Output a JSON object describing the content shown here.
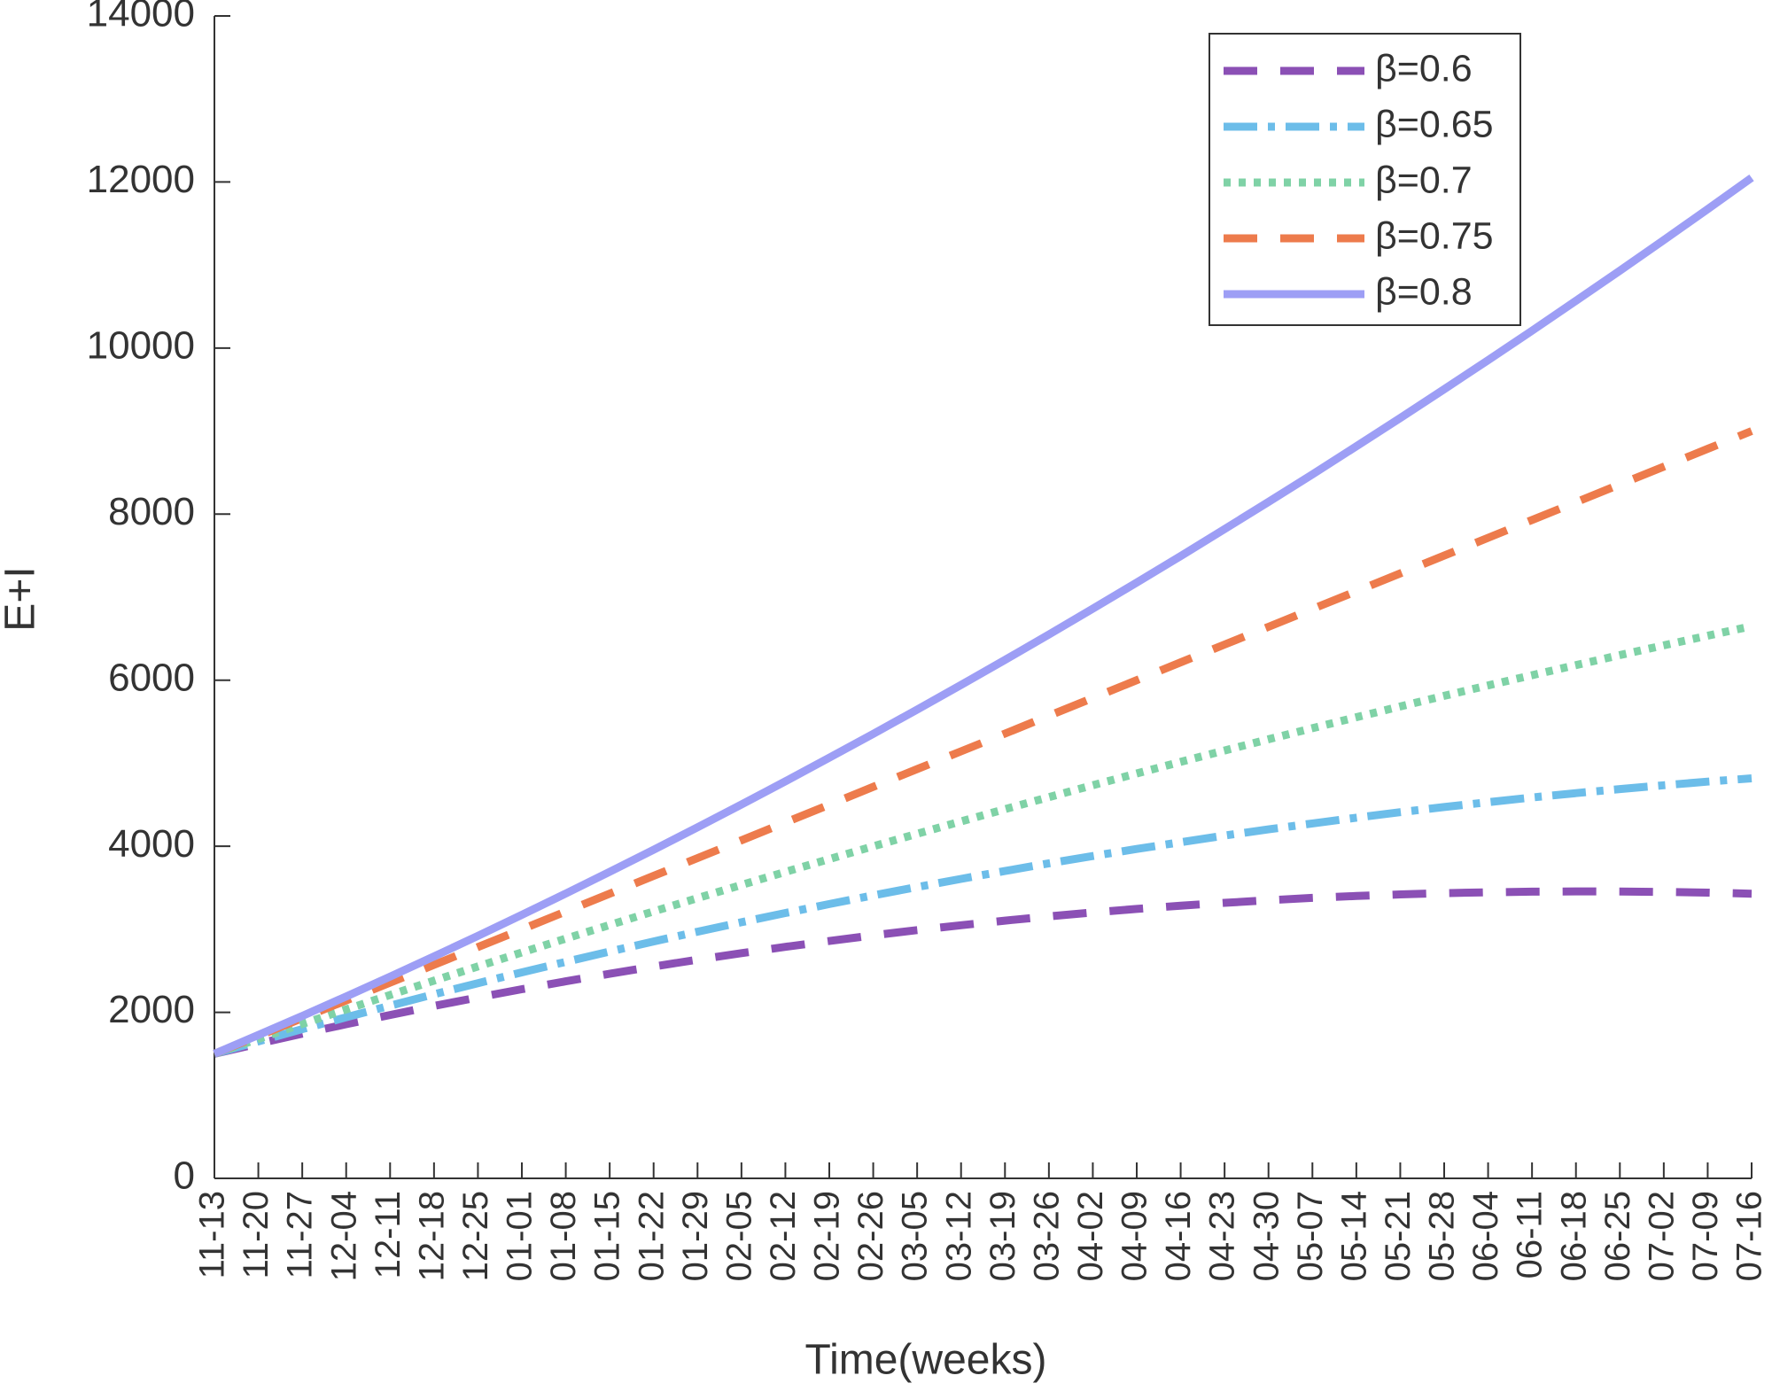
{
  "chart_data": {
    "type": "line",
    "xlabel": "Time(weeks)",
    "ylabel": "E+I",
    "categories": [
      "11-13",
      "11-20",
      "11-27",
      "12-04",
      "12-11",
      "12-18",
      "12-25",
      "01-01",
      "01-08",
      "01-15",
      "01-22",
      "01-29",
      "02-05",
      "02-12",
      "02-19",
      "02-26",
      "03-05",
      "03-12",
      "03-19",
      "03-26",
      "04-02",
      "04-09",
      "04-16",
      "04-23",
      "04-30",
      "05-07",
      "05-14",
      "05-21",
      "05-28",
      "06-04",
      "06-11",
      "06-18",
      "06-25",
      "07-02",
      "07-09",
      "07-16"
    ],
    "ylim": [
      0,
      14000
    ],
    "yticks": [
      0,
      2000,
      4000,
      6000,
      8000,
      10000,
      12000,
      14000
    ],
    "grid": false,
    "legend": "upper right",
    "series": [
      {
        "name": "β=0.6",
        "color": "#8b50b5",
        "dash": "dashed",
        "values": [
          1500,
          1623,
          1742,
          1857,
          1968,
          2076,
          2179,
          2278,
          2373,
          2464,
          2551,
          2634,
          2713,
          2788,
          2859,
          2927,
          2990,
          3049,
          3104,
          3155,
          3202,
          3245,
          3284,
          3319,
          3350,
          3378,
          3401,
          3420,
          3435,
          3446,
          3453,
          3456,
          3455,
          3450,
          3441,
          3429
        ]
      },
      {
        "name": "β=0.65",
        "color": "#6cbde9",
        "dash": "dashdot",
        "values": [
          1500,
          1650,
          1797,
          1940,
          2080,
          2217,
          2351,
          2481,
          2608,
          2732,
          2853,
          2971,
          3085,
          3196,
          3304,
          3408,
          3509,
          3607,
          3702,
          3794,
          3882,
          3967,
          4049,
          4128,
          4203,
          4275,
          4344,
          4410,
          4472,
          4531,
          4587,
          4640,
          4689,
          4735,
          4778,
          4818
        ]
      },
      {
        "name": "β=0.7",
        "color": "#7fd2a6",
        "dash": "dotted",
        "values": [
          1500,
          1680,
          1859,
          2035,
          2209,
          2382,
          2552,
          2721,
          2887,
          3052,
          3215,
          3375,
          3534,
          3691,
          3846,
          3999,
          4150,
          4299,
          4446,
          4592,
          4735,
          4876,
          5016,
          5153,
          5288,
          5422,
          5554,
          5683,
          5811,
          5937,
          6060,
          6182,
          6302,
          6420,
          6536,
          6650
        ]
      },
      {
        "name": "β=0.75",
        "color": "#ed7b4c",
        "dash": "dashed",
        "values": [
          1500,
          1714,
          1929,
          2143,
          2357,
          2572,
          2786,
          3000,
          3214,
          3429,
          3643,
          3857,
          4072,
          4286,
          4500,
          4715,
          4929,
          5143,
          5357,
          5572,
          5786,
          6000,
          6215,
          6429,
          6643,
          6858,
          7072,
          7286,
          7500,
          7715,
          7929,
          8143,
          8358,
          8572,
          8786,
          9001
        ]
      },
      {
        "name": "β=0.8",
        "color": "#9d9ef5",
        "dash": "solid",
        "values": [
          1500,
          1726,
          1956,
          2191,
          2430,
          2673,
          2921,
          3174,
          3431,
          3692,
          3958,
          4228,
          4503,
          4782,
          5066,
          5354,
          5646,
          5943,
          6245,
          6551,
          6861,
          7176,
          7495,
          7819,
          8147,
          8479,
          8817,
          9158,
          9504,
          9854,
          10209,
          10569,
          10932,
          11301,
          11673,
          12051
        ]
      }
    ]
  }
}
